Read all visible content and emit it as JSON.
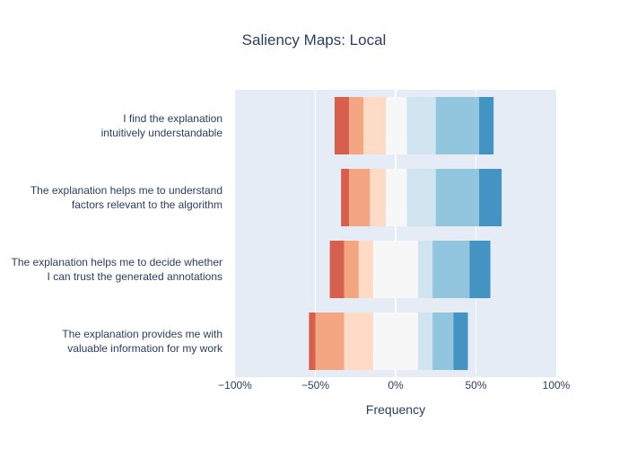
{
  "chart_data": {
    "type": "bar",
    "orientation": "horizontal",
    "stacked": "diverging",
    "title": "Saliency Maps: Local",
    "xlabel": "Frequency",
    "ylabel": "",
    "xlim": [
      -100,
      100
    ],
    "x_ticks": [
      -100,
      -50,
      0,
      50,
      100
    ],
    "x_tick_labels": [
      "−100%",
      "−50%",
      "0%",
      "50%",
      "100%"
    ],
    "grid": true,
    "legend": "none",
    "categories": [
      [
        "I find the explanation",
        "intuitively understandable"
      ],
      [
        "The explanation helps me to understand",
        "factors relevant to the algorithm"
      ],
      [
        "The explanation helps me to decide whether",
        "I can trust the generated annotations"
      ],
      [
        "The explanation provides me with",
        "valuable information for my work"
      ]
    ],
    "segment_colors": [
      "#d6604d",
      "#f4a582",
      "#fddbc7",
      "#f7f7f7",
      "#d1e5f0",
      "#92c5de",
      "#4393c3"
    ],
    "series": [
      {
        "values": [
          [
            -38,
            -29
          ],
          [
            -29,
            -20
          ],
          [
            -20,
            -6
          ],
          [
            -6,
            7
          ],
          [
            7,
            25
          ],
          [
            25,
            52
          ],
          [
            52,
            61
          ]
        ]
      },
      {
        "values": [
          [
            -34,
            -29
          ],
          [
            -29,
            -16
          ],
          [
            -16,
            -6
          ],
          [
            -6,
            7
          ],
          [
            7,
            25
          ],
          [
            25,
            52
          ],
          [
            52,
            66
          ]
        ]
      },
      {
        "values": [
          [
            -41,
            -32
          ],
          [
            -32,
            -23
          ],
          [
            -23,
            -14
          ],
          [
            -14,
            14
          ],
          [
            14,
            23
          ],
          [
            23,
            46
          ],
          [
            46,
            59
          ]
        ]
      },
      {
        "values": [
          [
            -54,
            -50
          ],
          [
            -50,
            -32
          ],
          [
            -32,
            -14
          ],
          [
            -14,
            14
          ],
          [
            14,
            23
          ],
          [
            23,
            36
          ],
          [
            36,
            45
          ]
        ]
      }
    ]
  }
}
